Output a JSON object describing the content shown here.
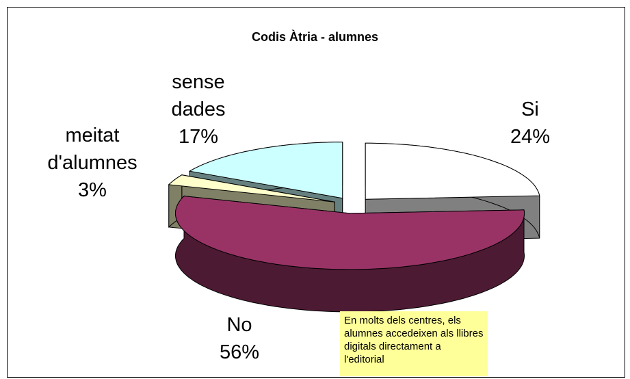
{
  "chart_data": {
    "type": "pie3d",
    "title": "Codis Àtria - alumnes",
    "categories": [
      "Si",
      "No",
      "meitat d'alumnes",
      "sense dades"
    ],
    "values": [
      24,
      56,
      3,
      17
    ],
    "value_labels": [
      "24%",
      "56%",
      "3%",
      "17%"
    ],
    "colors": [
      "#ffffff",
      "#993366",
      "#ffffcc",
      "#ccffff"
    ],
    "annotation": "En molts dels centres, els alumnes accedeixen als llibres digitals directament a l'editorial"
  }
}
